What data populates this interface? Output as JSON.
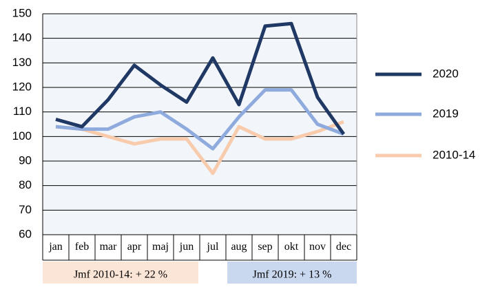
{
  "chart_data": {
    "type": "line",
    "categories": [
      "jan",
      "feb",
      "mar",
      "apr",
      "maj",
      "jun",
      "jul",
      "aug",
      "sep",
      "okt",
      "nov",
      "dec"
    ],
    "series": [
      {
        "name": "2020",
        "color": "#203864",
        "values": [
          107,
          104,
          115,
          129,
          121,
          114,
          132,
          113,
          145,
          146,
          116,
          101
        ]
      },
      {
        "name": "2019",
        "color": "#8faadc",
        "values": [
          104,
          103,
          103,
          108,
          110,
          103,
          95,
          108,
          119,
          119,
          105,
          101
        ]
      },
      {
        "name": "2010-14",
        "color": "#f8cbad",
        "values": [
          104,
          103,
          100,
          97,
          99,
          99,
          85,
          104,
          99,
          99,
          102,
          106
        ]
      }
    ],
    "ylim": [
      60,
      150
    ],
    "yticks": [
      60,
      70,
      80,
      90,
      100,
      110,
      120,
      130,
      140,
      150
    ],
    "grid": true,
    "legend": "right",
    "annotations": [
      {
        "text": "Jmf 2010-14: + 22 %",
        "color": "#fbe5d6"
      },
      {
        "text": "Jmf 2019: + 13 %",
        "color": "#c9d8ef"
      }
    ]
  }
}
